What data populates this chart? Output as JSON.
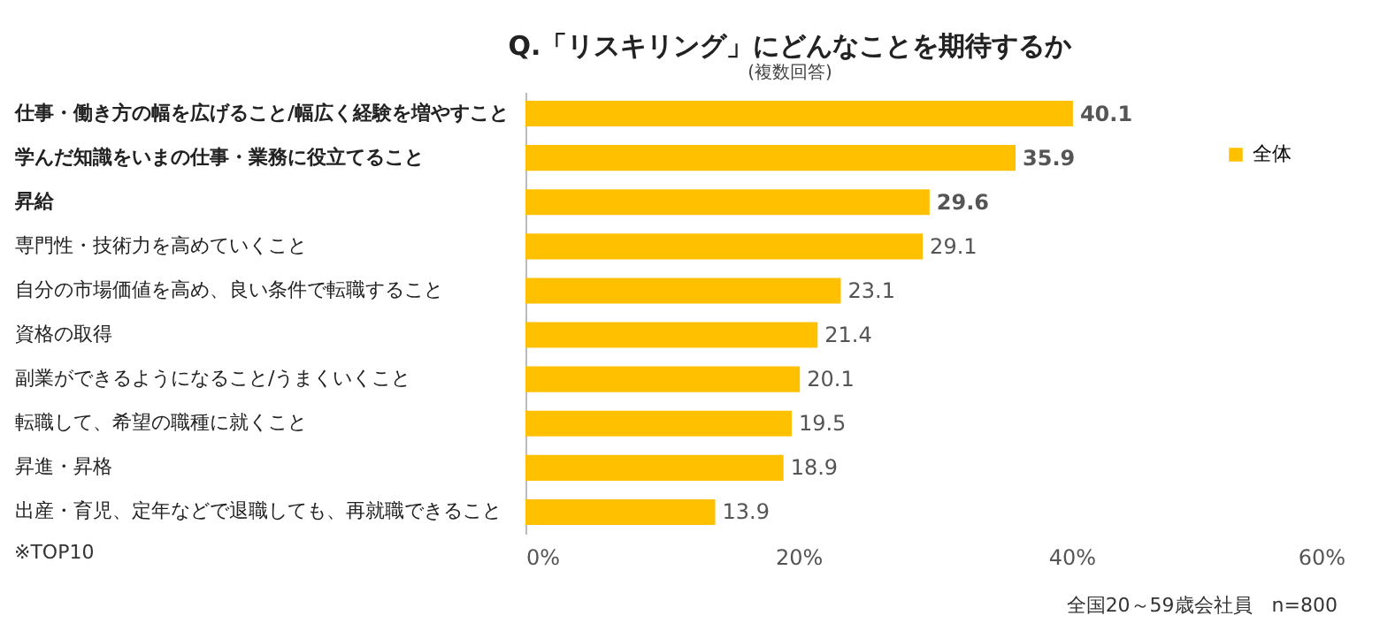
{
  "chart_data": {
    "type": "bar",
    "orientation": "horizontal",
    "title": "Q.「リスキリング」にどんなことを期待するか",
    "subtitle": "(複数回答)",
    "categories": [
      "仕事・働き方の幅を広げること/幅広く経験を増やすこと",
      "学んだ知識をいまの仕事・業務に役立てること",
      "昇給",
      "専門性・技術力を高めていくこと",
      "自分の市場価値を高め、良い条件で転職すること",
      "資格の取得",
      "副業ができるようになること/うまくいくこと",
      "転職して、希望の職種に就くこと",
      "昇進・昇格",
      "出産・育児、定年などで退職しても、再就職できること"
    ],
    "series": [
      {
        "name": "全体",
        "color": "#ffc000",
        "values": [
          40.1,
          35.9,
          29.6,
          29.1,
          23.1,
          21.4,
          20.1,
          19.5,
          18.9,
          13.9
        ]
      }
    ],
    "xlim": [
      0,
      60
    ],
    "xticks": [
      {
        "value": 0,
        "label": "0%"
      },
      {
        "value": 20,
        "label": "20%"
      },
      {
        "value": 40,
        "label": "40%"
      },
      {
        "value": 60,
        "label": "60%"
      }
    ],
    "data_labels": true,
    "legend": "top right",
    "annotations": [
      "※TOP10",
      "全国20～59歳会社員　n=800"
    ]
  }
}
